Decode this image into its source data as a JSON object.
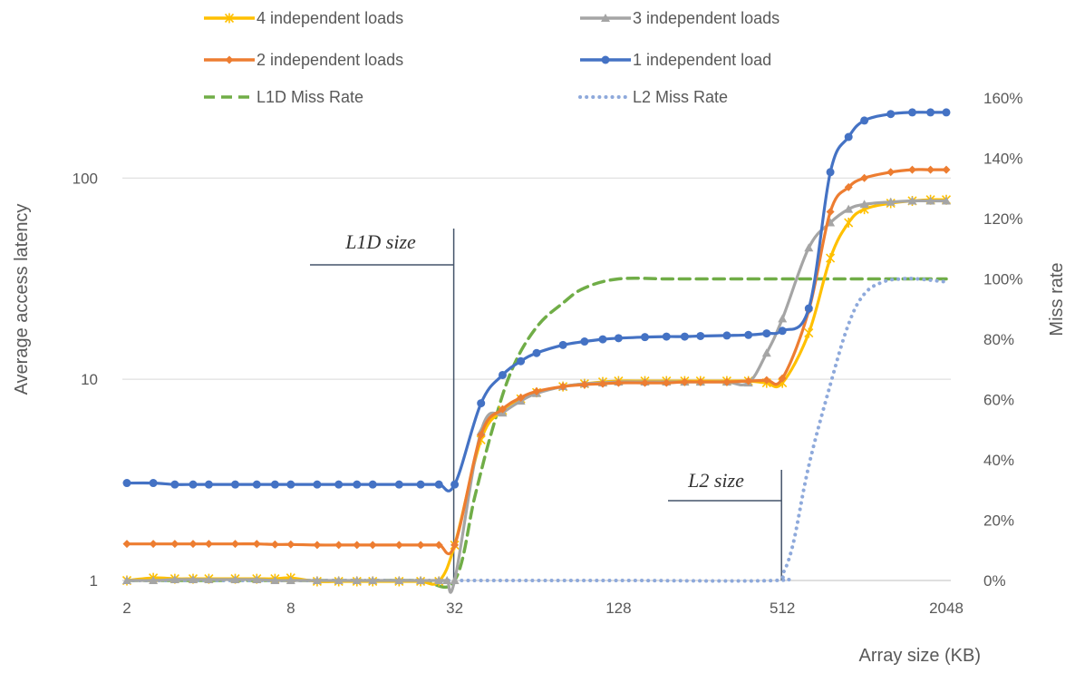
{
  "chart_data": {
    "type": "line",
    "xlabel": "Array size (KB)",
    "ylabel": "Average access latency",
    "y2label": "Miss rate",
    "x_scale": "log2",
    "x_ticks": [
      "2",
      "8",
      "32",
      "128",
      "512",
      "2048"
    ],
    "y_scale": "log10",
    "ylim": [
      1,
      250
    ],
    "y_ticks": [
      "1",
      "10",
      "100"
    ],
    "y2lim": [
      0,
      160
    ],
    "y2_ticks": [
      "0%",
      "20%",
      "40%",
      "60%",
      "80%",
      "100%",
      "120%",
      "140%",
      "160%"
    ],
    "grid": "horizontal",
    "legend_position": "top",
    "series": [
      {
        "name": "4 independent loads",
        "color": "#FFC000",
        "marker": "star",
        "axis": "left",
        "x": [
          2,
          2.5,
          3,
          3.5,
          4,
          5,
          6,
          7,
          8,
          10,
          12,
          14,
          16,
          20,
          24,
          28,
          32,
          40,
          48,
          56,
          64,
          80,
          96,
          112,
          128,
          160,
          192,
          224,
          256,
          320,
          384,
          448,
          512,
          640,
          768,
          896,
          1024,
          1280,
          1536,
          1792,
          2048
        ],
        "y": [
          1,
          1.03,
          1.02,
          1.02,
          1.02,
          1.02,
          1.02,
          1.02,
          1.03,
          0.99,
          0.99,
          0.99,
          0.99,
          0.99,
          0.99,
          0.99,
          1.5,
          5.0,
          7.0,
          8.0,
          8.6,
          9.2,
          9.5,
          9.7,
          9.8,
          9.8,
          9.8,
          9.8,
          9.8,
          9.8,
          9.8,
          9.6,
          9.6,
          17,
          40,
          60,
          70,
          75,
          77,
          78,
          78
        ]
      },
      {
        "name": "3 independent loads",
        "color": "#A5A5A5",
        "marker": "triangle",
        "axis": "left",
        "x": [
          2,
          2.5,
          3,
          3.5,
          4,
          5,
          6,
          7,
          8,
          10,
          12,
          14,
          16,
          20,
          24,
          28,
          30,
          32,
          40,
          48,
          56,
          64,
          80,
          96,
          112,
          128,
          160,
          192,
          224,
          256,
          320,
          384,
          448,
          512,
          640,
          768,
          896,
          1024,
          1280,
          1536,
          1792,
          2048
        ],
        "y": [
          1,
          1,
          1.01,
          1.01,
          1.01,
          1.01,
          1.01,
          1,
          1,
          1,
          1,
          1,
          1,
          1,
          1,
          1,
          1,
          1,
          5.5,
          6.8,
          7.8,
          8.5,
          9.2,
          9.5,
          9.6,
          9.7,
          9.7,
          9.7,
          9.7,
          9.7,
          9.7,
          9.6,
          13.5,
          20,
          45,
          60,
          70,
          74,
          76,
          77,
          77,
          77
        ]
      },
      {
        "name": "2 independent loads",
        "color": "#ED7D31",
        "marker": "diamond",
        "axis": "left",
        "x": [
          2,
          2.5,
          3,
          3.5,
          4,
          5,
          6,
          7,
          8,
          10,
          12,
          14,
          16,
          20,
          24,
          28,
          32,
          40,
          48,
          56,
          64,
          80,
          96,
          112,
          128,
          160,
          192,
          224,
          256,
          320,
          384,
          448,
          512,
          640,
          768,
          896,
          1024,
          1280,
          1536,
          1792,
          2048
        ],
        "y": [
          1.52,
          1.52,
          1.52,
          1.52,
          1.52,
          1.52,
          1.52,
          1.51,
          1.51,
          1.5,
          1.5,
          1.5,
          1.5,
          1.5,
          1.5,
          1.5,
          1.5,
          5.3,
          7.1,
          8.1,
          8.7,
          9.2,
          9.4,
          9.5,
          9.6,
          9.6,
          9.6,
          9.7,
          9.7,
          9.7,
          9.8,
          9.9,
          10.1,
          22,
          68,
          90,
          100,
          107,
          110,
          110,
          110
        ]
      },
      {
        "name": "1 independent load",
        "color": "#4472C4",
        "marker": "circle",
        "axis": "left",
        "x": [
          2,
          2.5,
          3,
          3.5,
          4,
          5,
          6,
          7,
          8,
          10,
          12,
          14,
          16,
          20,
          24,
          28,
          32,
          40,
          48,
          56,
          64,
          80,
          96,
          112,
          128,
          160,
          192,
          224,
          256,
          320,
          384,
          448,
          512,
          640,
          768,
          896,
          1024,
          1280,
          1536,
          1792,
          2048
        ],
        "y": [
          3.05,
          3.05,
          3.0,
          3.0,
          3.0,
          3.0,
          3.0,
          3.0,
          3.0,
          3.0,
          3.0,
          3.0,
          3.0,
          3.0,
          3.0,
          3.0,
          3.0,
          7.6,
          10.5,
          12.3,
          13.5,
          14.8,
          15.4,
          15.8,
          16,
          16.2,
          16.3,
          16.3,
          16.4,
          16.5,
          16.6,
          16.9,
          17.4,
          22.5,
          107,
          160,
          193,
          208,
          212,
          212,
          212
        ]
      },
      {
        "name": "L1D Miss Rate",
        "color": "#70AD47",
        "dash": "dashed",
        "axis": "right",
        "x": [
          2,
          4,
          8,
          16,
          24,
          32,
          38,
          44,
          52,
          64,
          80,
          96,
          128,
          192,
          256,
          384,
          512,
          768,
          1024,
          2048
        ],
        "y": [
          0,
          0,
          0,
          0,
          0,
          0,
          28,
          50,
          70,
          84,
          92,
          97,
          100,
          100,
          100,
          100,
          100,
          100,
          100,
          100
        ]
      },
      {
        "name": "L2 Miss Rate",
        "color": "#8EA9DB",
        "dash": "dotted",
        "axis": "right",
        "x": [
          2,
          8,
          32,
          128,
          480,
          512,
          560,
          640,
          768,
          896,
          1024,
          1200,
          1400,
          1600,
          2048
        ],
        "y": [
          0,
          0,
          0,
          0,
          0,
          2,
          12,
          38,
          65,
          85,
          95,
          99,
          100,
          100,
          99
        ]
      }
    ],
    "annotations": [
      {
        "text": "L1D size",
        "x": 32
      },
      {
        "text": "L2 size",
        "x": 512
      }
    ]
  }
}
